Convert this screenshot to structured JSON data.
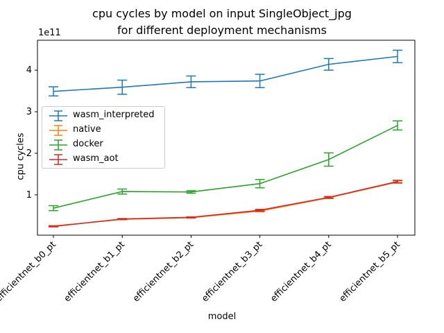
{
  "chart_data": {
    "type": "line",
    "title": "cpu cycles by model on input SingleObject_jpg\nfor different deployment mechanisms",
    "title_lines": [
      "cpu cycles by model on input SingleObject_jpg",
      "for different deployment mechanisms"
    ],
    "xlabel": "model",
    "ylabel": "cpu cycles",
    "y_offset_label": "1e11",
    "categories": [
      "efficientnet_b0_pt",
      "efficientnet_b1_pt",
      "efficientnet_b2_pt",
      "efficientnet_b3_pt",
      "efficientnet_b4_pt",
      "efficientnet_b5_pt"
    ],
    "y_ticks": [
      1,
      2,
      3,
      4
    ],
    "ylim": [
      0.03,
      4.72
    ],
    "y_scale_note": "values in units of 1e11",
    "grid": false,
    "legend_placement": "center-left",
    "error_bars": true,
    "series": [
      {
        "name": "wasm_interpreted",
        "color": "#1f77b4",
        "values": [
          3.49,
          3.59,
          3.72,
          3.74,
          4.14,
          4.33
        ],
        "errors": [
          0.11,
          0.17,
          0.14,
          0.16,
          0.14,
          0.15
        ]
      },
      {
        "name": "native",
        "color": "#ff7f0e",
        "values": [
          0.25,
          0.41,
          0.45,
          0.61,
          0.93,
          1.31
        ],
        "errors": [
          0.01,
          0.01,
          0.01,
          0.02,
          0.02,
          0.03
        ]
      },
      {
        "name": "docker",
        "color": "#2ca02c",
        "values": [
          0.68,
          1.08,
          1.07,
          1.27,
          1.85,
          2.67
        ],
        "errors": [
          0.06,
          0.06,
          0.03,
          0.1,
          0.16,
          0.11
        ]
      },
      {
        "name": "wasm_aot",
        "color": "#d62728",
        "values": [
          0.24,
          0.42,
          0.46,
          0.63,
          0.94,
          1.32
        ],
        "errors": [
          0.01,
          0.01,
          0.01,
          0.02,
          0.02,
          0.03
        ]
      }
    ]
  }
}
